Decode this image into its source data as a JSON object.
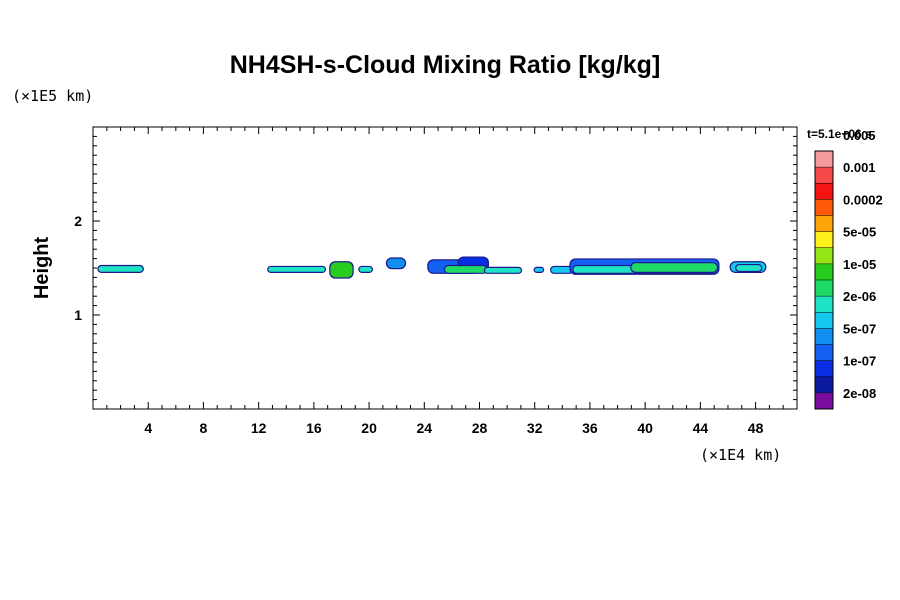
{
  "chart_data": {
    "type": "heatmap",
    "title": "NH4SH-s-Cloud Mixing Ratio [kg/kg]",
    "xlabel": "",
    "ylabel": "Height",
    "x_unit": "(×1E4 km)",
    "y_unit": "(×1E5 km)",
    "time_label": "t=5.1e+06 s",
    "xlim": [
      0,
      51
    ],
    "ylim": [
      0,
      3
    ],
    "x_ticks": [
      4,
      8,
      12,
      16,
      20,
      24,
      28,
      32,
      36,
      40,
      44,
      48
    ],
    "y_ticks": [
      1,
      2
    ],
    "colorbar": {
      "colors": [
        "#7a0da0",
        "#0b1a9c",
        "#0a2ee6",
        "#1360f2",
        "#108ff0",
        "#14c8ee",
        "#1ee3c4",
        "#1edb66",
        "#28cc1e",
        "#96e616",
        "#fff21c",
        "#ffa50a",
        "#ff5a0a",
        "#f51414",
        "#f54848",
        "#f59a9a"
      ],
      "labels": [
        "2e-08",
        "1e-07",
        "5e-07",
        "2e-06",
        "1e-05",
        "5e-05",
        "0.0002",
        "0.001",
        "0.005"
      ]
    },
    "clouds": [
      {
        "x0": 0.4,
        "x1": 3.6,
        "y_bottom": 1.46,
        "y_top": 1.52,
        "level": 6
      },
      {
        "x0": 12.7,
        "x1": 16.8,
        "y_bottom": 1.46,
        "y_top": 1.51,
        "level": 6
      },
      {
        "x0": 17.2,
        "x1": 18.8,
        "y_bottom": 1.4,
        "y_top": 1.56,
        "level": 8
      },
      {
        "x0": 19.3,
        "x1": 20.2,
        "y_bottom": 1.46,
        "y_top": 1.51,
        "level": 6
      },
      {
        "x0": 21.3,
        "x1": 22.6,
        "y_bottom": 1.5,
        "y_top": 1.6,
        "level": 4
      },
      {
        "x0": 24.3,
        "x1": 28.0,
        "y_bottom": 1.45,
        "y_top": 1.58,
        "level": 3
      },
      {
        "x0": 26.5,
        "x1": 28.6,
        "y_bottom": 1.48,
        "y_top": 1.61,
        "level": 2
      },
      {
        "x0": 25.5,
        "x1": 28.5,
        "y_bottom": 1.45,
        "y_top": 1.52,
        "level": 7
      },
      {
        "x0": 28.4,
        "x1": 31.0,
        "y_bottom": 1.45,
        "y_top": 1.5,
        "level": 6
      },
      {
        "x0": 32.0,
        "x1": 32.6,
        "y_bottom": 1.46,
        "y_top": 1.5,
        "level": 5
      },
      {
        "x0": 33.2,
        "x1": 34.7,
        "y_bottom": 1.45,
        "y_top": 1.51,
        "level": 5
      },
      {
        "x0": 34.6,
        "x1": 45.3,
        "y_bottom": 1.44,
        "y_top": 1.59,
        "level": 3
      },
      {
        "x0": 34.8,
        "x1": 45.0,
        "y_bottom": 1.45,
        "y_top": 1.52,
        "level": 6
      },
      {
        "x0": 39.0,
        "x1": 45.2,
        "y_bottom": 1.46,
        "y_top": 1.55,
        "level": 7
      },
      {
        "x0": 46.2,
        "x1": 48.7,
        "y_bottom": 1.46,
        "y_top": 1.56,
        "level": 5
      },
      {
        "x0": 46.6,
        "x1": 48.4,
        "y_bottom": 1.47,
        "y_top": 1.53,
        "level": 6
      }
    ]
  }
}
